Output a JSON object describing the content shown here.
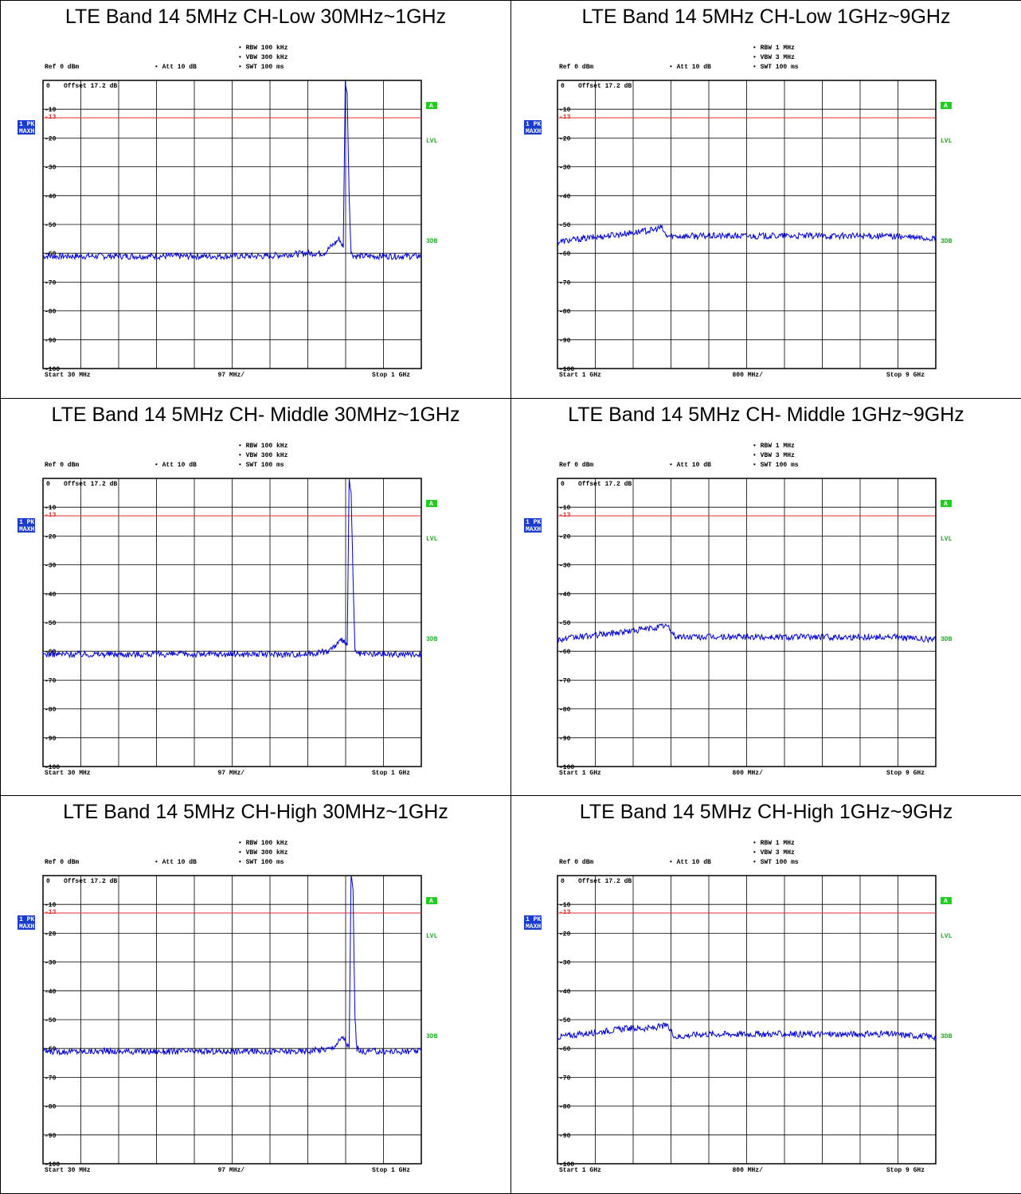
{
  "panels": [
    {
      "title": "LTE Band 14 5MHz CH-Low 30MHz~1GHz",
      "settings": {
        "rbw": "RBW 100 kHz",
        "vbw": "VBW 300 kHz",
        "swt": "SWT 100 ms"
      },
      "ref_text": "Ref 0 dBm",
      "att_text": "Att 10 dB",
      "offset_text": "Offset 17.2 dB",
      "trace_badge": [
        "1 PK",
        "MAXH"
      ],
      "side_labels": [
        "A",
        "LVL",
        "3DB"
      ],
      "limit_value": "-13",
      "x_start": "Start 30 MHz",
      "x_div": "97 MHz/",
      "x_stop": "Stop 1 GHz"
    },
    {
      "title": "LTE Band 14 5MHz CH-Low 1GHz~9GHz",
      "settings": {
        "rbw": "RBW 1 MHz",
        "vbw": "VBW 3 MHz",
        "swt": "SWT 100 ms"
      },
      "ref_text": "Ref 0 dBm",
      "att_text": "Att 10 dB",
      "offset_text": "Offset 17.2 dB",
      "trace_badge": [
        "1 PK",
        "MAXH"
      ],
      "side_labels": [
        "A",
        "LVL",
        "3DB"
      ],
      "limit_value": "-13",
      "x_start": "Start 1 GHz",
      "x_div": "800 MHz/",
      "x_stop": "Stop 9 GHz"
    },
    {
      "title": "LTE Band 14 5MHz CH- Middle 30MHz~1GHz",
      "settings": {
        "rbw": "RBW 100 kHz",
        "vbw": "VBW 300 kHz",
        "swt": "SWT 100 ms"
      },
      "ref_text": "Ref 0 dBm",
      "att_text": "Att 10 dB",
      "offset_text": "Offset 17.2 dB",
      "trace_badge": [
        "1 PK",
        "MAXH"
      ],
      "side_labels": [
        "A",
        "LVL",
        "3DB"
      ],
      "limit_value": "-13",
      "x_start": "Start 30 MHz",
      "x_div": "97 MHz/",
      "x_stop": "Stop 1 GHz"
    },
    {
      "title": "LTE Band 14 5MHz CH- Middle 1GHz~9GHz",
      "settings": {
        "rbw": "RBW 1 MHz",
        "vbw": "VBW 3 MHz",
        "swt": "SWT 100 ms"
      },
      "ref_text": "Ref 0 dBm",
      "att_text": "Att 10 dB",
      "offset_text": "Offset 17.2 dB",
      "trace_badge": [
        "1 PK",
        "MAXH"
      ],
      "side_labels": [
        "A",
        "LVL",
        "3DB"
      ],
      "limit_value": "-13",
      "x_start": "Start 1 GHz",
      "x_div": "800 MHz/",
      "x_stop": "Stop 9 GHz"
    },
    {
      "title": "LTE Band 14 5MHz CH-High 30MHz~1GHz",
      "settings": {
        "rbw": "RBW 100 kHz",
        "vbw": "VBW 300 kHz",
        "swt": "SWT 100 ms"
      },
      "ref_text": "Ref 0 dBm",
      "att_text": "Att 10 dB",
      "offset_text": "Offset 17.2 dB",
      "trace_badge": [
        "1 PK",
        "MAXH"
      ],
      "side_labels": [
        "A",
        "LVL",
        "3DB"
      ],
      "limit_value": "-13",
      "x_start": "Start 30 MHz",
      "x_div": "97 MHz/",
      "x_stop": "Stop 1 GHz"
    },
    {
      "title": "LTE Band 14 5MHz CH-High 1GHz~9GHz",
      "settings": {
        "rbw": "RBW 1 MHz",
        "vbw": "VBW 3 MHz",
        "swt": "SWT 100 ms"
      },
      "ref_text": "Ref 0 dBm",
      "att_text": "Att 10 dB",
      "offset_text": "Offset 17.2 dB",
      "trace_badge": [
        "1 PK",
        "MAXH"
      ],
      "side_labels": [
        "A",
        "LVL",
        "3DB"
      ],
      "limit_value": "-13",
      "x_start": "Start 1 GHz",
      "x_div": "800 MHz/",
      "x_stop": "Stop 9 GHz"
    }
  ],
  "colors": {
    "trace": "#0000cc",
    "limit_line": "#e03030",
    "grid": "#000000",
    "badge_bg": "#1a3ccc",
    "status_green": "#22cc22",
    "side_text": "#22aa22"
  },
  "chart_data": [
    {
      "type": "line",
      "title": "LTE Band 14 5MHz CH-Low 30MHz~1GHz",
      "xlim": [
        30,
        1000
      ],
      "x_unit": "MHz",
      "ylim": [
        -100,
        0
      ],
      "y_unit": "dBm",
      "yticks": [
        "0",
        "-10",
        "-20",
        "-30",
        "-40",
        "-50",
        "-60",
        "-70",
        "-80",
        "-90",
        "-100"
      ],
      "limit_line_dbm": -13,
      "series": [
        {
          "x": [
            30,
            100,
            200,
            300,
            400,
            500,
            600,
            700,
            750,
            790,
            800,
            805,
            810,
            815,
            820,
            830,
            900,
            1000
          ],
          "y": [
            -61,
            -61,
            -61,
            -61,
            -61,
            -61,
            -61,
            -60,
            -60,
            -55,
            -58,
            0,
            -5,
            -40,
            -60,
            -61,
            -61,
            -61
          ]
        }
      ],
      "grid": true
    },
    {
      "type": "line",
      "title": "LTE Band 14 5MHz CH-Low 1GHz~9GHz",
      "xlim": [
        1,
        9
      ],
      "x_unit": "GHz",
      "ylim": [
        -100,
        0
      ],
      "y_unit": "dBm",
      "yticks": [
        "0",
        "-10",
        "-20",
        "-30",
        "-40",
        "-50",
        "-60",
        "-70",
        "-80",
        "-90",
        "-100"
      ],
      "limit_line_dbm": -13,
      "series": [
        {
          "x": [
            1,
            1.5,
            2,
            2.5,
            3,
            3.2,
            3.3,
            4,
            5,
            6,
            7,
            8,
            9
          ],
          "y": [
            -56,
            -55,
            -54,
            -53,
            -52,
            -51,
            -54,
            -54,
            -54,
            -54,
            -54,
            -54,
            -55
          ]
        }
      ],
      "grid": true
    },
    {
      "type": "line",
      "title": "LTE Band 14 5MHz CH- Middle 30MHz~1GHz",
      "xlim": [
        30,
        1000
      ],
      "x_unit": "MHz",
      "ylim": [
        -100,
        0
      ],
      "y_unit": "dBm",
      "yticks": [
        "0",
        "-10",
        "-20",
        "-30",
        "-40",
        "-50",
        "-60",
        "-70",
        "-80",
        "-90",
        "-100"
      ],
      "limit_line_dbm": -13,
      "series": [
        {
          "x": [
            30,
            100,
            200,
            300,
            400,
            500,
            600,
            700,
            760,
            800,
            810,
            815,
            820,
            825,
            830,
            840,
            900,
            1000
          ],
          "y": [
            -61,
            -61,
            -61,
            -61,
            -61,
            -61,
            -61,
            -61,
            -60,
            -56,
            -58,
            0,
            -5,
            -35,
            -60,
            -61,
            -61,
            -61
          ]
        }
      ],
      "grid": true
    },
    {
      "type": "line",
      "title": "LTE Band 14 5MHz CH- Middle 1GHz~9GHz",
      "xlim": [
        1,
        9
      ],
      "x_unit": "GHz",
      "ylim": [
        -100,
        0
      ],
      "y_unit": "dBm",
      "yticks": [
        "0",
        "-10",
        "-20",
        "-30",
        "-40",
        "-50",
        "-60",
        "-70",
        "-80",
        "-90",
        "-100"
      ],
      "limit_line_dbm": -13,
      "series": [
        {
          "x": [
            1,
            1.5,
            2,
            2.5,
            3,
            3.3,
            3.5,
            4,
            5,
            6,
            7,
            8,
            9
          ],
          "y": [
            -56,
            -55,
            -54,
            -53,
            -52,
            -51,
            -55,
            -55,
            -55,
            -55,
            -55,
            -55,
            -56
          ]
        }
      ],
      "grid": true
    },
    {
      "type": "line",
      "title": "LTE Band 14 5MHz CH-High 30MHz~1GHz",
      "xlim": [
        30,
        1000
      ],
      "x_unit": "MHz",
      "ylim": [
        -100,
        0
      ],
      "y_unit": "dBm",
      "yticks": [
        "0",
        "-10",
        "-20",
        "-30",
        "-40",
        "-50",
        "-60",
        "-70",
        "-80",
        "-90",
        "-100"
      ],
      "limit_line_dbm": -13,
      "series": [
        {
          "x": [
            30,
            100,
            200,
            300,
            400,
            500,
            600,
            700,
            770,
            800,
            815,
            820,
            825,
            830,
            835,
            845,
            900,
            1000
          ],
          "y": [
            -61,
            -61,
            -61,
            -61,
            -61,
            -61,
            -61,
            -61,
            -60,
            -56,
            -60,
            0,
            -5,
            -50,
            -60,
            -61,
            -61,
            -61
          ]
        }
      ],
      "grid": true
    },
    {
      "type": "line",
      "title": "LTE Band 14 5MHz CH-High 1GHz~9GHz",
      "xlim": [
        1,
        9
      ],
      "x_unit": "GHz",
      "ylim": [
        -100,
        0
      ],
      "y_unit": "dBm",
      "yticks": [
        "0",
        "-10",
        "-20",
        "-30",
        "-40",
        "-50",
        "-60",
        "-70",
        "-80",
        "-90",
        "-100"
      ],
      "limit_line_dbm": -13,
      "series": [
        {
          "x": [
            1,
            1.5,
            2,
            2.5,
            3,
            3.3,
            3.5,
            4,
            5,
            6,
            7,
            8,
            9
          ],
          "y": [
            -56,
            -55,
            -54,
            -53,
            -53,
            -52,
            -56,
            -55,
            -55,
            -55,
            -55,
            -55,
            -56
          ]
        }
      ],
      "grid": true
    }
  ]
}
